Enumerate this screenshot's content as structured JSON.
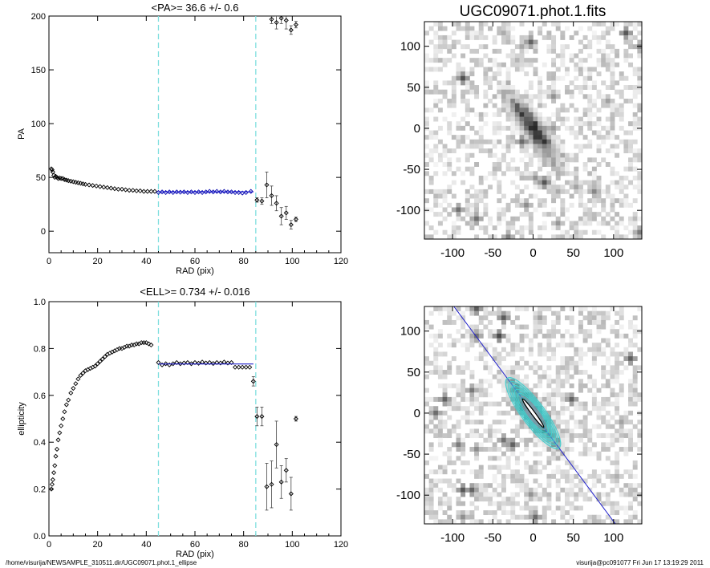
{
  "footer": {
    "left": "/home/visurija/NEWSAMPLE_310511.dir/UGC09071.phot.1_ellipse",
    "right": "visurija@pc091077  Fri Jun 17 13:19:29 2011"
  },
  "chart_data": [
    {
      "type": "scatter",
      "title": "<PA>=  36.6 +/-   0.6",
      "xlabel": "RAD (pix)",
      "ylabel": "PA",
      "xlim": [
        0,
        120
      ],
      "ylim": [
        -20,
        200
      ],
      "xticks": [
        0,
        20,
        40,
        60,
        80,
        100,
        120
      ],
      "yticks": [
        0,
        50,
        100,
        150,
        200
      ],
      "vlines": [
        45,
        85
      ],
      "fit": {
        "x0": 45,
        "x1": 84,
        "y": 36.6
      },
      "series": [
        {
          "marker": "diamond",
          "color": "#000000",
          "x": [
            1,
            1.3,
            1.6,
            2,
            2.4,
            2.8,
            3.3,
            3.8,
            4.4,
            5,
            5.7,
            6.4,
            7.2,
            8,
            9,
            10,
            11,
            12,
            13,
            14,
            15,
            16.5,
            18,
            19.5,
            21,
            22.5,
            24,
            25.5,
            27,
            28.5,
            30,
            31.5,
            33,
            34.5,
            36,
            37.5,
            39,
            40.5,
            42,
            43.5
          ],
          "y": [
            58,
            57,
            55,
            52,
            50,
            51,
            50,
            49,
            49.5,
            49,
            49,
            48,
            47.5,
            47,
            46.5,
            46,
            45.5,
            45,
            44.5,
            44,
            43.5,
            43,
            42.5,
            42,
            41.5,
            41,
            40.5,
            40,
            39.5,
            39,
            39,
            38.5,
            38,
            38,
            37.5,
            37.5,
            37,
            37,
            37,
            37
          ]
        },
        {
          "marker": "diamond",
          "color": "#0000aa",
          "x": [
            45,
            46.5,
            48,
            49.5,
            51,
            52.5,
            54,
            55.5,
            57,
            58.5,
            60,
            61.5,
            63,
            64.5,
            66,
            67.5,
            69,
            70.5,
            72,
            73.5,
            75,
            76.5,
            78,
            79.5,
            81,
            83
          ],
          "y": [
            36,
            36.5,
            36,
            36.5,
            36,
            36.5,
            36.2,
            36.5,
            36,
            36.5,
            36,
            36.5,
            36,
            36.5,
            37,
            36.5,
            37,
            36.5,
            37,
            36.5,
            36.5,
            36,
            36,
            35.5,
            36,
            37
          ]
        },
        {
          "marker": "diamond",
          "color": "#000000",
          "x": [
            85.5,
            87.5,
            89.5,
            91.5,
            93.5,
            95.5,
            97.5,
            99.5,
            101.5
          ],
          "y": [
            29,
            28,
            43,
            33,
            26,
            14,
            17,
            6,
            11
          ],
          "err": [
            2,
            3,
            12,
            9,
            7,
            8,
            6,
            4,
            2
          ]
        },
        {
          "marker": "diamond",
          "color": "#000000",
          "x": [
            91.5,
            93.5,
            95.5,
            97.5,
            99.5,
            101.5
          ],
          "y": [
            197,
            194,
            198,
            196,
            187,
            192
          ],
          "err": [
            4,
            6,
            5,
            8,
            4,
            3
          ]
        }
      ]
    },
    {
      "type": "scatter",
      "title": "<ELL>= 0.734 +/-  0.016",
      "xlabel": "RAD (pix)",
      "ylabel": "ellipticity",
      "xlim": [
        0,
        120
      ],
      "ylim": [
        0,
        1
      ],
      "xticks": [
        0,
        20,
        40,
        60,
        80,
        100,
        120
      ],
      "yticks": [
        0.0,
        0.2,
        0.4,
        0.6,
        0.8,
        1.0
      ],
      "vlines": [
        45,
        85
      ],
      "fit": {
        "x0": 45,
        "x1": 84,
        "y": 0.734
      },
      "series": [
        {
          "marker": "diamond",
          "color": "#000000",
          "x": [
            1,
            1.3,
            1.6,
            2,
            2.4,
            2.8,
            3.3,
            3.8,
            4.4,
            5,
            5.7,
            6.4,
            7.2,
            8,
            9,
            10,
            11,
            12,
            13,
            14,
            15,
            16,
            17,
            18,
            19,
            20,
            21,
            22,
            23,
            24,
            25,
            26,
            27,
            28,
            29,
            30,
            31,
            32,
            33,
            34,
            35,
            36,
            37,
            38,
            39,
            40,
            41,
            42
          ],
          "y": [
            0.2,
            0.22,
            0.24,
            0.27,
            0.3,
            0.34,
            0.37,
            0.41,
            0.44,
            0.47,
            0.5,
            0.53,
            0.56,
            0.58,
            0.61,
            0.63,
            0.65,
            0.67,
            0.685,
            0.695,
            0.705,
            0.71,
            0.715,
            0.72,
            0.725,
            0.735,
            0.745,
            0.755,
            0.765,
            0.775,
            0.78,
            0.785,
            0.79,
            0.795,
            0.8,
            0.8,
            0.805,
            0.81,
            0.81,
            0.815,
            0.815,
            0.82,
            0.82,
            0.825,
            0.825,
            0.825,
            0.82,
            0.815
          ]
        },
        {
          "marker": "diamond",
          "color": "#000000",
          "x": [
            45,
            46.5,
            48,
            49.5,
            51,
            52.5,
            54,
            55.5,
            57,
            58.5,
            60,
            61.5,
            63,
            64.5,
            66,
            67.5,
            69,
            70.5,
            72,
            73.5,
            75,
            76.5,
            78,
            79.5,
            81,
            82.5
          ],
          "y": [
            0.74,
            0.73,
            0.735,
            0.73,
            0.735,
            0.74,
            0.735,
            0.738,
            0.74,
            0.735,
            0.74,
            0.737,
            0.742,
            0.738,
            0.74,
            0.736,
            0.74,
            0.738,
            0.742,
            0.738,
            0.74,
            0.72,
            0.72,
            0.72,
            0.72,
            0.72
          ]
        },
        {
          "marker": "diamond",
          "color": "#000000",
          "x": [
            84,
            85.5,
            87.5,
            89.5,
            91.5,
            93.5,
            95.5,
            97.5,
            99.5,
            101.5
          ],
          "y": [
            0.66,
            0.51,
            0.51,
            0.21,
            0.22,
            0.39,
            0.23,
            0.28,
            0.18,
            0.5
          ],
          "err": [
            0.02,
            0.04,
            0.04,
            0.1,
            0.1,
            0.1,
            0.07,
            0.05,
            0.07,
            0.01
          ]
        }
      ]
    },
    {
      "type": "heatmap",
      "title": "UGC09071.phot.1.fits",
      "xlim": [
        -135,
        135
      ],
      "ylim": [
        -135,
        130
      ],
      "xticks": [
        -100,
        -50,
        0,
        50,
        100
      ],
      "yticks": [
        -100,
        -50,
        0,
        50,
        100
      ],
      "galaxy": {
        "x": 0,
        "y": 0,
        "pa": 36.6,
        "ell": 0.734,
        "semi_major": 85
      },
      "colormap": "grayscale-inverted"
    },
    {
      "type": "heatmap",
      "title": "",
      "xlim": [
        -135,
        135
      ],
      "ylim": [
        -135,
        130
      ],
      "xticks": [
        -100,
        -50,
        0,
        50,
        100
      ],
      "yticks": [
        -100,
        -50,
        0,
        50,
        100
      ],
      "galaxy": {
        "x": 0,
        "y": 0,
        "pa": 36.6,
        "ell": 0.734,
        "semi_major": 85
      },
      "contour_color": "#40d0d0",
      "major_axis_color": "#2020cc",
      "colormap": "grayscale-inverted"
    }
  ]
}
